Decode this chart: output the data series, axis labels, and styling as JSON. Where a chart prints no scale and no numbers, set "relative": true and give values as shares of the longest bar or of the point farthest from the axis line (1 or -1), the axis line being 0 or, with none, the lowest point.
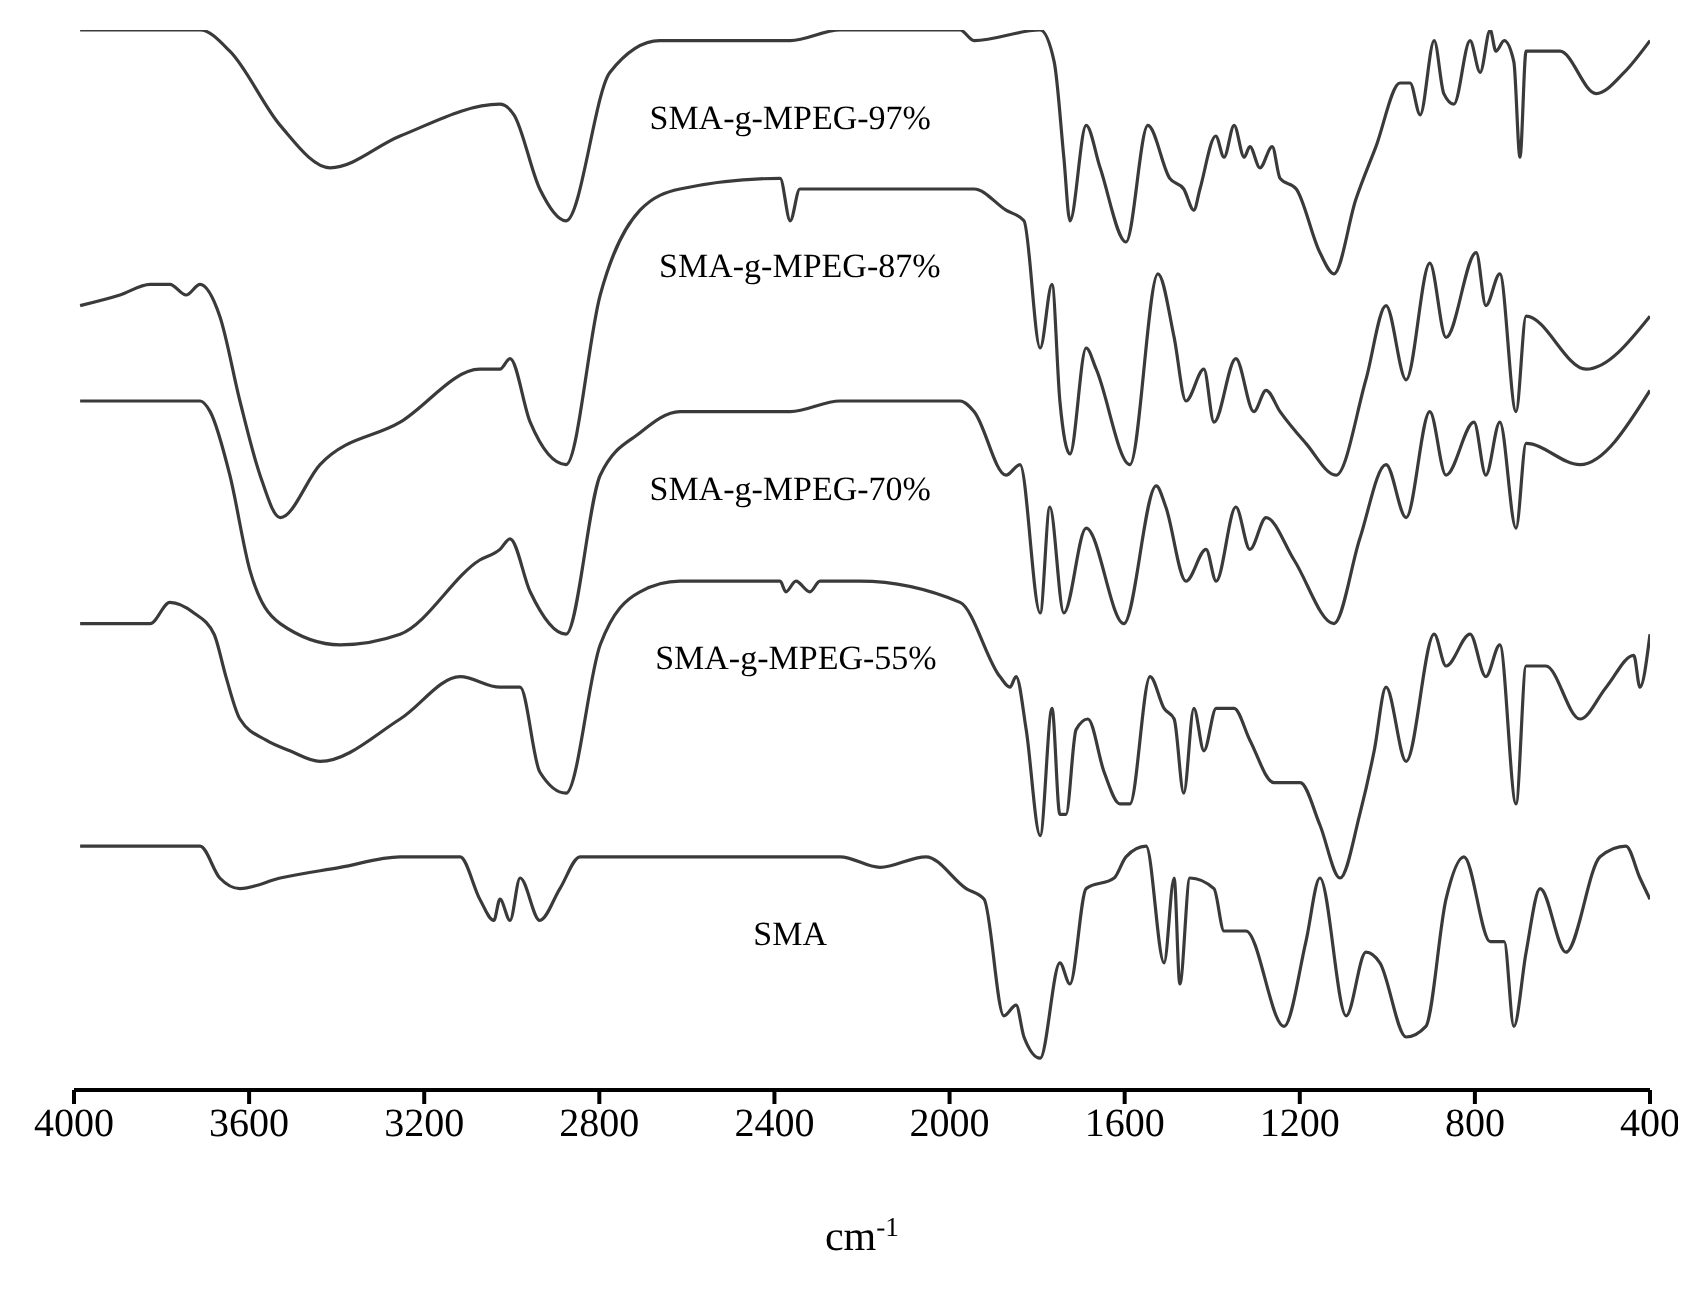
{
  "chart_data": {
    "type": "line",
    "relative": true,
    "xlabel": "cm$^{-1}$",
    "xlim": [
      4000,
      400
    ],
    "xticks": [
      4000,
      3600,
      3200,
      2800,
      2400,
      2000,
      1600,
      1200,
      800,
      400
    ],
    "series": [
      {
        "name": "SMA-g-MPEG-97%",
        "color": "#3a3a3a",
        "x": [
          3986,
          3712,
          3644,
          3529,
          3415,
          3255,
          3027,
          2995,
          2936,
          2876,
          2776,
          2662,
          2364,
          2250,
          1976,
          1944,
          1793,
          1761,
          1739,
          1725,
          1688,
          1656,
          1597,
          1547,
          1497,
          1465,
          1442,
          1428,
          1392,
          1373,
          1350,
          1327,
          1314,
          1291,
          1263,
          1245,
          1208,
          1154,
          1122,
          1072,
          1026,
          971,
          948,
          925,
          893,
          871,
          848,
          811,
          788,
          765,
          752,
          733,
          711,
          697,
          683,
          606,
          523,
          459,
          400
        ],
        "values": [
          1.0,
          1.0,
          0.98,
          0.91,
          0.87,
          0.9,
          0.93,
          0.92,
          0.85,
          0.82,
          0.96,
          0.99,
          0.99,
          1.0,
          1.0,
          0.99,
          1.0,
          0.97,
          0.88,
          0.82,
          0.91,
          0.87,
          0.8,
          0.91,
          0.86,
          0.85,
          0.83,
          0.85,
          0.9,
          0.88,
          0.91,
          0.88,
          0.89,
          0.87,
          0.89,
          0.86,
          0.85,
          0.79,
          0.77,
          0.84,
          0.89,
          0.95,
          0.95,
          0.92,
          0.99,
          0.94,
          0.93,
          0.99,
          0.96,
          1.0,
          0.98,
          0.99,
          0.97,
          0.88,
          0.98,
          0.98,
          0.94,
          0.96,
          0.99
        ]
      },
      {
        "name": "SMA-g-MPEG-87%",
        "color": "#3a3a3a",
        "x": [
          3986,
          3895,
          3826,
          3781,
          3744,
          3712,
          3667,
          3621,
          3575,
          3529,
          3438,
          3255,
          3073,
          3027,
          3004,
          2958,
          2876,
          2798,
          2707,
          2616,
          2387,
          2364,
          2342,
          2250,
          1944,
          1871,
          1830,
          1793,
          1766,
          1748,
          1725,
          1688,
          1665,
          1588,
          1524,
          1487,
          1460,
          1419,
          1396,
          1346,
          1305,
          1277,
          1245,
          1186,
          1117,
          1049,
          1003,
          957,
          903,
          866,
          797,
          775,
          743,
          706,
          683,
          546,
          400
        ],
        "values": [
          0.74,
          0.75,
          0.76,
          0.76,
          0.75,
          0.76,
          0.73,
          0.65,
          0.58,
          0.54,
          0.59,
          0.63,
          0.68,
          0.68,
          0.69,
          0.63,
          0.59,
          0.75,
          0.83,
          0.85,
          0.86,
          0.82,
          0.85,
          0.85,
          0.85,
          0.83,
          0.82,
          0.7,
          0.76,
          0.65,
          0.6,
          0.7,
          0.68,
          0.59,
          0.77,
          0.71,
          0.65,
          0.68,
          0.63,
          0.69,
          0.64,
          0.66,
          0.64,
          0.61,
          0.58,
          0.67,
          0.74,
          0.67,
          0.78,
          0.71,
          0.79,
          0.74,
          0.77,
          0.64,
          0.73,
          0.68,
          0.73
        ]
      },
      {
        "name": "SMA-g-MPEG-70%",
        "color": "#3a3a3a",
        "x": [
          3986,
          3712,
          3689,
          3644,
          3598,
          3529,
          3392,
          3255,
          3073,
          3027,
          3004,
          2958,
          2876,
          2798,
          2707,
          2616,
          2387,
          2364,
          2250,
          1976,
          1944,
          1871,
          1839,
          1793,
          1771,
          1739,
          1688,
          1602,
          1528,
          1506,
          1460,
          1414,
          1391,
          1346,
          1314,
          1277,
          1213,
          1122,
          1063,
          1003,
          957,
          903,
          866,
          802,
          775,
          743,
          706,
          683,
          560,
          400
        ],
        "values": [
          0.65,
          0.65,
          0.64,
          0.58,
          0.49,
          0.44,
          0.42,
          0.43,
          0.5,
          0.51,
          0.52,
          0.47,
          0.43,
          0.58,
          0.62,
          0.64,
          0.64,
          0.64,
          0.65,
          0.65,
          0.64,
          0.58,
          0.59,
          0.45,
          0.55,
          0.45,
          0.53,
          0.44,
          0.57,
          0.55,
          0.48,
          0.51,
          0.48,
          0.55,
          0.51,
          0.54,
          0.5,
          0.44,
          0.52,
          0.59,
          0.54,
          0.64,
          0.58,
          0.63,
          0.58,
          0.63,
          0.53,
          0.61,
          0.59,
          0.66
        ]
      },
      {
        "name": "SMA-g-MPEG-55%",
        "color": "#3a3a3a",
        "x": [
          3986,
          3826,
          3781,
          3726,
          3680,
          3653,
          3621,
          3561,
          3507,
          3438,
          3255,
          3118,
          3027,
          2981,
          2936,
          2876,
          2798,
          2707,
          2616,
          2387,
          2374,
          2351,
          2319,
          2296,
          2205,
          1976,
          1885,
          1862,
          1848,
          1825,
          1793,
          1766,
          1748,
          1734,
          1711,
          1684,
          1647,
          1611,
          1588,
          1542,
          1510,
          1487,
          1465,
          1442,
          1419,
          1391,
          1350,
          1314,
          1259,
          1199,
          1154,
          1108,
          1063,
          1030,
          1003,
          957,
          893,
          866,
          811,
          775,
          743,
          706,
          683,
          638,
          560,
          500,
          437,
          423,
          400
        ],
        "values": [
          0.44,
          0.44,
          0.46,
          0.45,
          0.43,
          0.39,
          0.35,
          0.33,
          0.32,
          0.31,
          0.35,
          0.39,
          0.38,
          0.38,
          0.3,
          0.28,
          0.42,
          0.47,
          0.48,
          0.48,
          0.47,
          0.48,
          0.47,
          0.48,
          0.48,
          0.46,
          0.39,
          0.38,
          0.39,
          0.34,
          0.24,
          0.36,
          0.26,
          0.26,
          0.34,
          0.35,
          0.3,
          0.27,
          0.27,
          0.39,
          0.36,
          0.35,
          0.28,
          0.36,
          0.32,
          0.36,
          0.36,
          0.33,
          0.29,
          0.29,
          0.25,
          0.2,
          0.26,
          0.32,
          0.38,
          0.31,
          0.43,
          0.4,
          0.43,
          0.39,
          0.42,
          0.27,
          0.4,
          0.4,
          0.35,
          0.38,
          0.41,
          0.38,
          0.43
        ]
      },
      {
        "name": "SMA",
        "color": "#3a3a3a",
        "x": [
          3986,
          3712,
          3667,
          3621,
          3529,
          3392,
          3255,
          3118,
          3073,
          3041,
          3027,
          3004,
          2981,
          2936,
          2890,
          2844,
          2661,
          2364,
          2250,
          2159,
          2054,
          1962,
          1921,
          1876,
          1848,
          1830,
          1793,
          1748,
          1725,
          1688,
          1624,
          1597,
          1551,
          1510,
          1487,
          1474,
          1451,
          1396,
          1373,
          1323,
          1236,
          1186,
          1154,
          1094,
          1049,
          1017,
          957,
          912,
          866,
          825,
          765,
          733,
          711,
          683,
          651,
          592,
          514,
          455,
          423,
          400
        ],
        "values": [
          0.23,
          0.23,
          0.2,
          0.19,
          0.2,
          0.21,
          0.22,
          0.22,
          0.18,
          0.16,
          0.18,
          0.16,
          0.2,
          0.16,
          0.19,
          0.22,
          0.22,
          0.22,
          0.22,
          0.21,
          0.22,
          0.19,
          0.18,
          0.07,
          0.08,
          0.05,
          0.03,
          0.12,
          0.1,
          0.19,
          0.2,
          0.22,
          0.23,
          0.12,
          0.2,
          0.1,
          0.2,
          0.19,
          0.15,
          0.15,
          0.06,
          0.14,
          0.2,
          0.07,
          0.13,
          0.12,
          0.05,
          0.06,
          0.18,
          0.22,
          0.14,
          0.14,
          0.06,
          0.13,
          0.19,
          0.13,
          0.22,
          0.23,
          0.2,
          0.18
        ]
      }
    ]
  }
}
